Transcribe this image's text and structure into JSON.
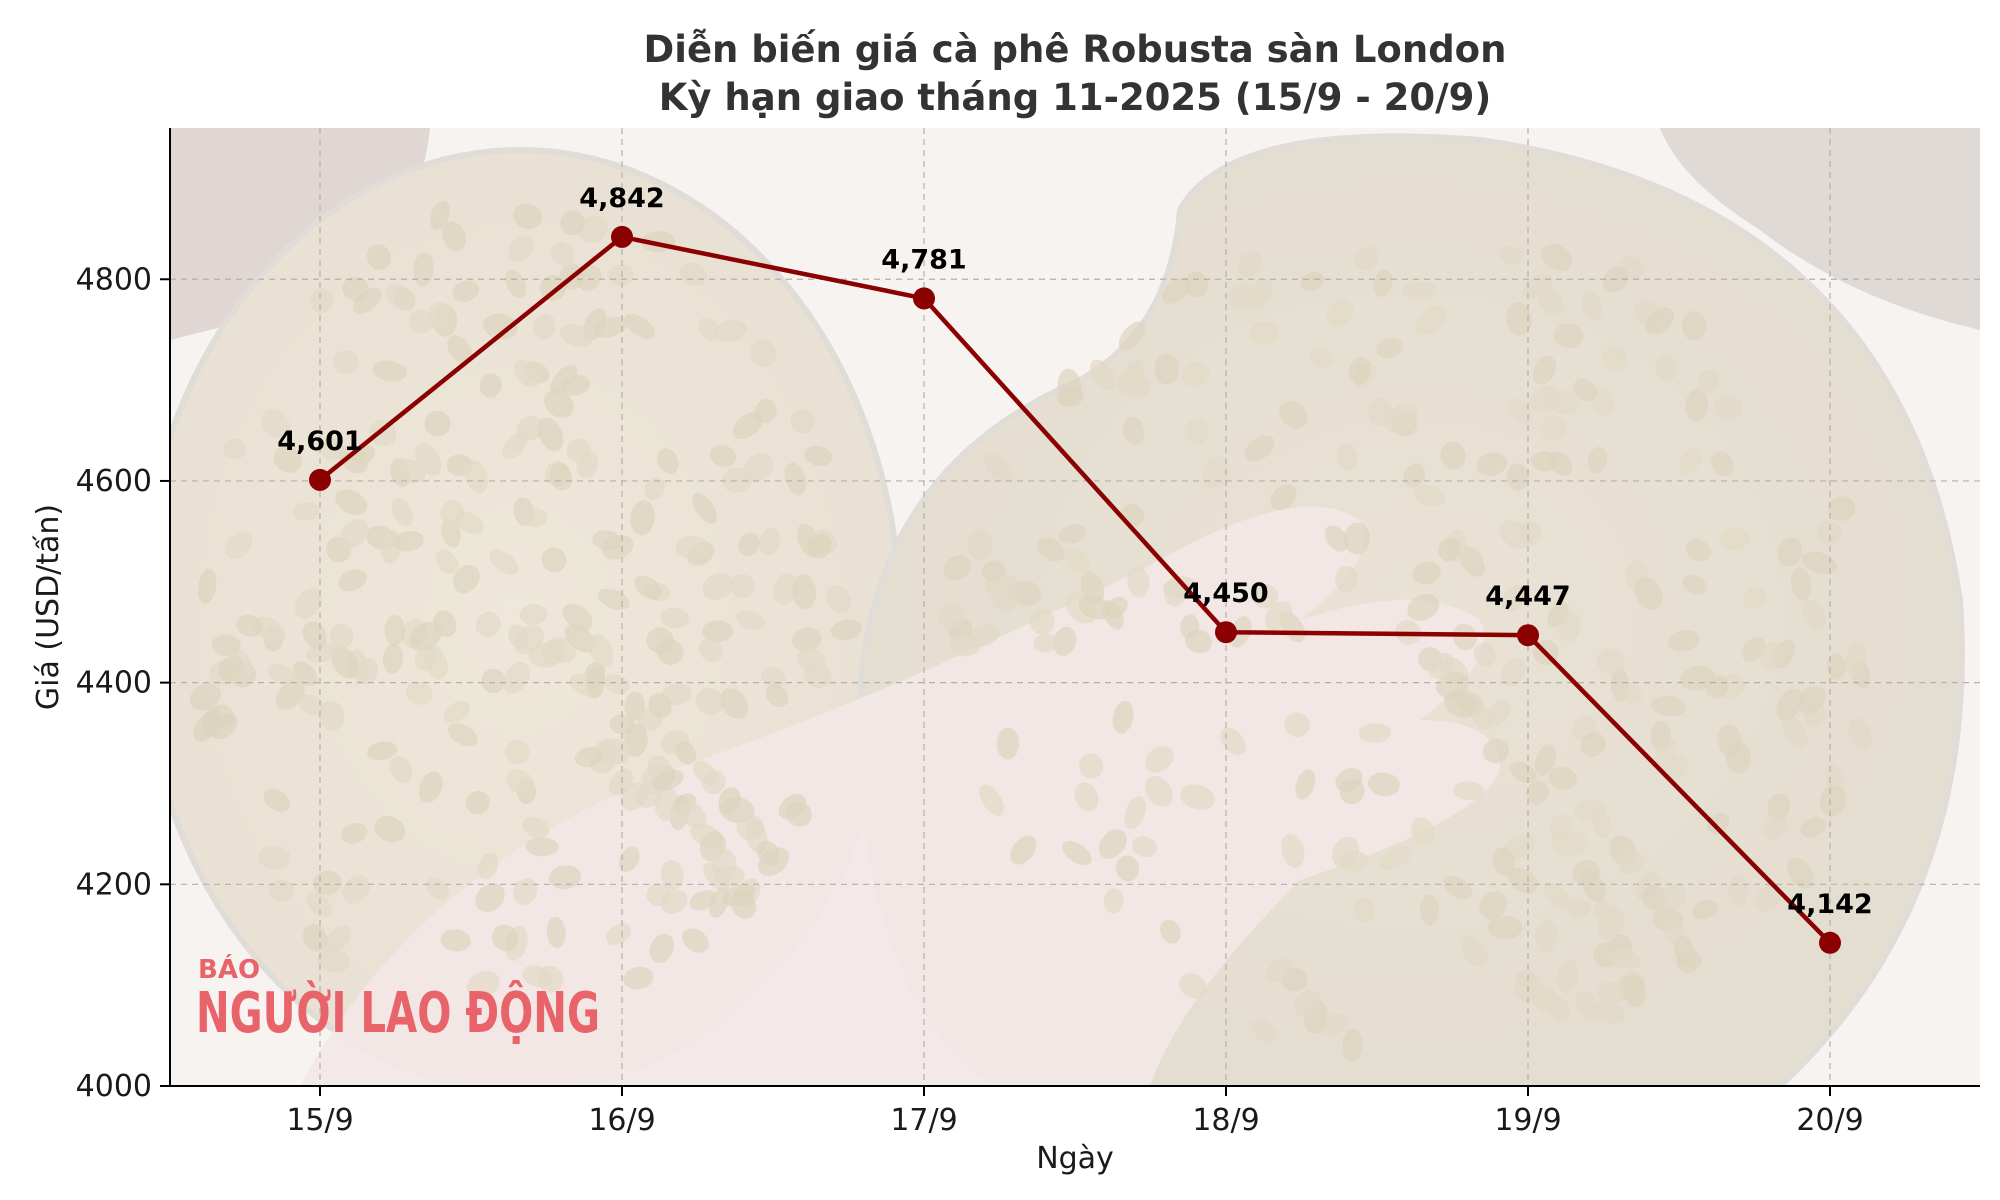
{
  "chart_data": {
    "type": "line",
    "title": "Diễn biến giá cà phê Robusta sàn London",
    "subtitle": "Kỳ hạn giao tháng 11-2025 (15/9 - 20/9)",
    "xlabel": "Ngày",
    "ylabel": "Giá (USD/tấn)",
    "categories": [
      "15/9",
      "16/9",
      "17/9",
      "18/9",
      "19/9",
      "20/9"
    ],
    "series": [
      {
        "values": [
          4601,
          4842,
          4781,
          4450,
          4447,
          4142
        ],
        "labels": [
          "4,601",
          "4,842",
          "4,781",
          "4,450",
          "4,447",
          "4,142"
        ],
        "color": "#8b0000"
      }
    ],
    "ylim": [
      4000,
      4950
    ],
    "yticks": [
      "4000",
      "4200",
      "4400",
      "4600",
      "4800"
    ],
    "ytick_values": [
      4000,
      4200,
      4400,
      4600,
      4800
    ],
    "grid": true,
    "legend": "none"
  },
  "watermark": {
    "top": "BÁO",
    "main": "NGƯỜI LAO ĐỘNG",
    "color": "#e8636a"
  },
  "background": {
    "description_icon": "coffee-beans-photo",
    "tone": "#efeae2"
  }
}
